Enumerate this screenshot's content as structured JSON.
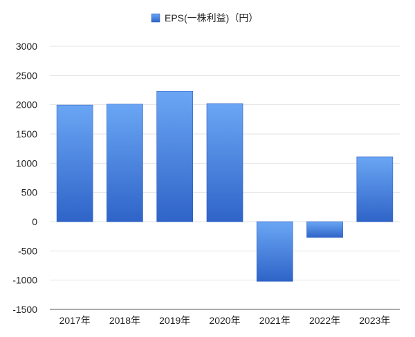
{
  "chart_data": {
    "type": "bar",
    "title": "",
    "xlabel": "",
    "ylabel": "",
    "legend": {
      "position": "top-center",
      "entries": [
        "EPS(一株利益)（円）"
      ]
    },
    "categories": [
      "2017年",
      "2018年",
      "2019年",
      "2020年",
      "2021年",
      "2022年",
      "2023年"
    ],
    "series": [
      {
        "name": "EPS(一株利益)（円）",
        "values": [
          1995,
          2010,
          2230,
          2020,
          -1020,
          -270,
          1110
        ]
      }
    ],
    "ylim": [
      -1500,
      3000
    ],
    "yticks": [
      "3000",
      "2500",
      "2000",
      "1500",
      "1000",
      "500",
      "0",
      "-500",
      "-1000",
      "-1500"
    ],
    "grid": true,
    "colors": {
      "bar_top": "#6aa6f4",
      "bar_bottom": "#2f64c8",
      "bar_edge": "#2a5cc0",
      "grid": "#e3e3e3",
      "axis": "#555555"
    }
  }
}
